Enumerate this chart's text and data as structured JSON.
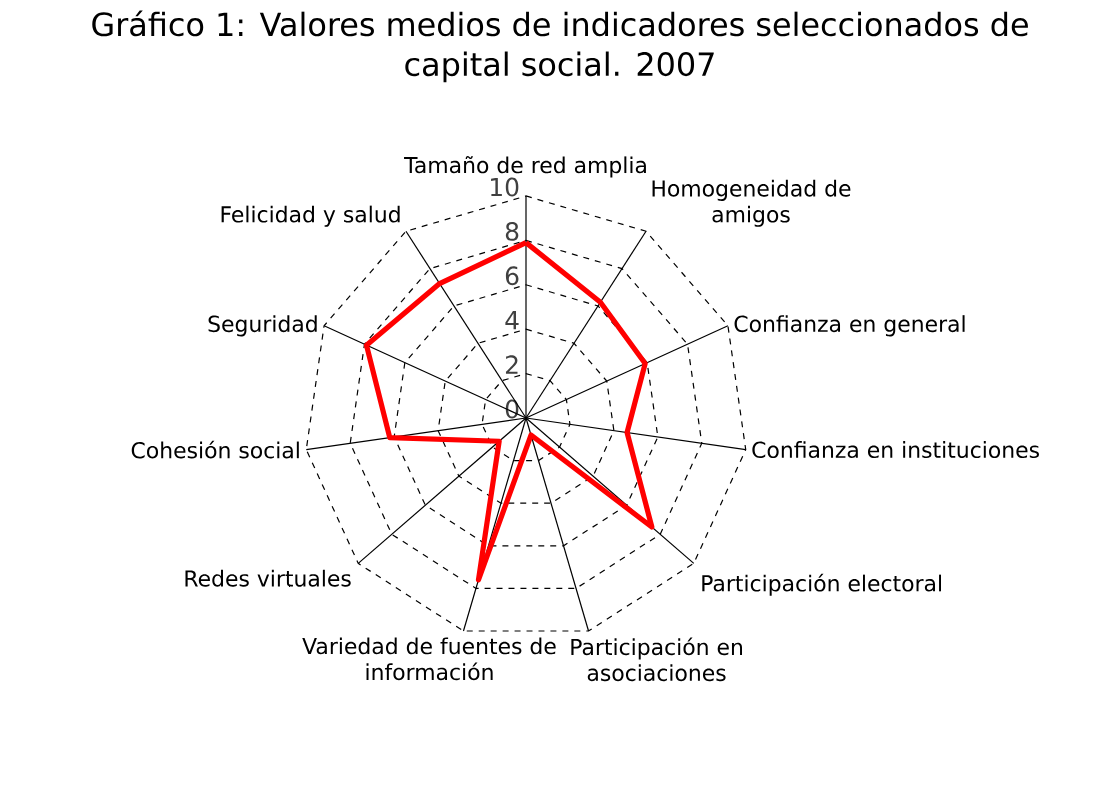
{
  "chart_data": {
    "type": "radar",
    "title": "Gráfico 1: Valores medios de indicadores seleccionados de capital social. 2007",
    "categories": [
      "Tamaño de red amplia",
      "Homogeneidad de amigos",
      "Confianza en general",
      "Confianza en instituciones",
      "Participación electoral",
      "Participación en asociaciones",
      "Variedad de fuentes de información",
      "Redes virtuales",
      "Cohesión social",
      "Seguridad",
      "Felicidad y salud"
    ],
    "series": [
      {
        "color": "#ff0000",
        "values": [
          7.9,
          6.2,
          5.9,
          4.6,
          7.5,
          0.8,
          7.6,
          1.6,
          6.2,
          7.9,
          7.2
        ]
      }
    ],
    "ylim": [
      0,
      10
    ],
    "yticks": [
      0,
      2,
      4,
      6,
      8,
      10
    ],
    "grid": true,
    "line_style": "solid"
  }
}
